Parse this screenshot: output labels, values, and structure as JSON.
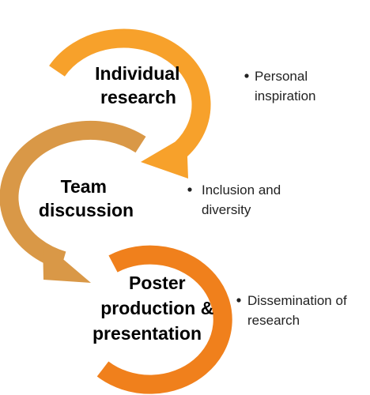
{
  "diagram": {
    "stages": [
      {
        "title_lines": [
          "Individual",
          "research"
        ],
        "color": "#F7A12B",
        "bullet": [
          "Personal",
          "inspiration"
        ]
      },
      {
        "title_lines": [
          "Team",
          "discussion"
        ],
        "color": "#D99847",
        "bullet": [
          "Inclusion and",
          "diversity"
        ]
      },
      {
        "title_lines": [
          "Poster",
          "production &",
          "presentation"
        ],
        "color": "#F0801C",
        "bullet": [
          "Dissemination of",
          "research"
        ]
      }
    ]
  }
}
